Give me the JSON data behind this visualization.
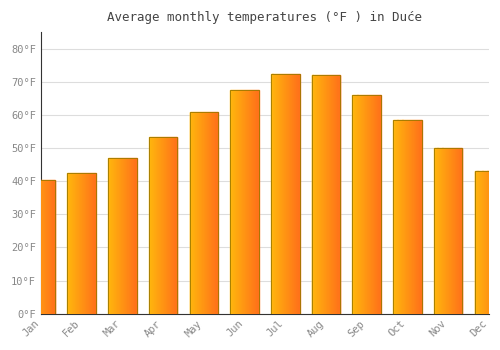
{
  "title": "Average monthly temperatures (°F ) in Duće",
  "months": [
    "Jan",
    "Feb",
    "Mar",
    "Apr",
    "May",
    "Jun",
    "Jul",
    "Aug",
    "Sep",
    "Oct",
    "Nov",
    "Dec"
  ],
  "values": [
    40.5,
    42.5,
    47.0,
    53.5,
    61.0,
    67.5,
    72.5,
    72.0,
    66.0,
    58.5,
    50.0,
    43.0
  ],
  "bar_color_main": "#FFAA00",
  "bar_color_left": "#FFD040",
  "bar_color_right": "#FF8C00",
  "bar_edge_color": "#888800",
  "background_color": "#ffffff",
  "plot_background": "#ffffff",
  "grid_color": "#dddddd",
  "tick_color": "#888888",
  "title_color": "#444444",
  "ytick_labels": [
    "0°F",
    "10°F",
    "20°F",
    "30°F",
    "40°F",
    "50°F",
    "60°F",
    "70°F",
    "80°F"
  ],
  "ytick_values": [
    0,
    10,
    20,
    30,
    40,
    50,
    60,
    70,
    80
  ],
  "ylim": [
    0,
    85
  ],
  "font_family": "monospace"
}
